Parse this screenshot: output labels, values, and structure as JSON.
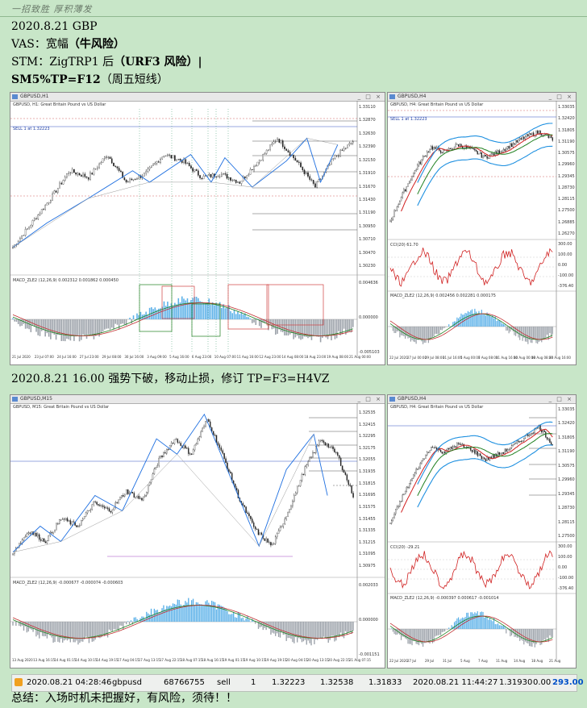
{
  "header": {
    "motto": "一招致胜 厚积薄发"
  },
  "lines": {
    "date_symbol": "2020.8.21 GBP",
    "vas_prefix": "VAS：宽幅",
    "vas_bold": "（牛风险）",
    "stm_prefix": "STM：ZigTRP1 后",
    "stm_bold": "（URF3 风险）",
    "stm_suffix": "|",
    "sm": "SM5%TP=F12",
    "sm_suffix": "（周五短线）",
    "note": "2020.8.21 16.00 强势下破，移动止损，修订 TP=F3=H4VZ"
  },
  "charts": {
    "h1": {
      "window_title": "GBPUSD,H1",
      "subtitle": "GBPUSD, H1: Great Britain Pound vs US Dollar",
      "sell_label": "SELL 1 at 1.32223",
      "macd_label": "MACD_ZLE2 (12,26,9) 0.002312 0.001862 0.000450",
      "price_axis": [
        "1.33110",
        "1.32870",
        "1.32630",
        "1.32390",
        "1.32150",
        "1.31910",
        "1.31670",
        "1.31430",
        "1.31190",
        "1.30950",
        "1.30710",
        "1.30470",
        "1.30230"
      ],
      "time_axis": [
        "21 Jul 2020",
        "23 Jul 07:00",
        "24 Jul 16:00",
        "27 Jul 23:00",
        "29 Jul 08:00",
        "30 Jul 16:00",
        "3 Aug 09:00",
        "5 Aug 16:00",
        "6 Aug 23:00",
        "10 Aug 07:00",
        "11 Aug 16:00",
        "12 Aug 23:00",
        "14 Aug 08:00",
        "18 Aug 23:00",
        "19 Aug 08:00",
        "21 Aug 00:00"
      ],
      "macd_axis": [
        "0.004636",
        "0.000000",
        "-0.005103"
      ]
    },
    "h4_top": {
      "window_title": "GBPUSD,H4",
      "subtitle": "GBPUSD, H4: Great Britain Pound vs US Dollar",
      "sell_label": "SELL 1 at 1.32223",
      "cci_label": "CCI(20) 61.70",
      "macd_label": "MACD_ZLE2 (12,26,9) 0.002456 0.002281 0.000175",
      "price_axis": [
        "1.33035",
        "1.32420",
        "1.31805",
        "1.31190",
        "1.30575",
        "1.29960",
        "1.29345",
        "1.28730",
        "1.28115",
        "1.27500",
        "1.26885",
        "1.26270"
      ],
      "cci_axis": [
        "300.00",
        "100.00",
        "0.00",
        "-100.00",
        "-376.40"
      ],
      "time_axis": [
        "22 Jul 2020",
        "27 Jul 00:00",
        "29 Jul 08:00",
        "31 Jul 16:00",
        "5 Aug 00:00",
        "7 Aug 08:00",
        "11 Aug 16:00",
        "14 Aug 00:00",
        "18 Aug 08:00",
        "20 Aug 16:00"
      ]
    },
    "m15": {
      "window_title": "GBPUSD,M15",
      "subtitle": "GBPUSD, M15: Great Britain Pound vs US Dollar",
      "macd_label": "MACD_ZLE2 (12,26,9) -0.000677 -0.000074 -0.000603",
      "price_axis": [
        "1.32535",
        "1.32415",
        "1.32295",
        "1.32175",
        "1.32055",
        "1.31935",
        "1.31815",
        "1.31695",
        "1.31575",
        "1.31455",
        "1.31335",
        "1.31215",
        "1.31095",
        "1.30975"
      ],
      "time_axis": [
        "13 Aug 2020",
        "13 Aug 16:15",
        "14 Aug 01:15",
        "14 Aug 10:15",
        "14 Aug 19:15",
        "17 Aug 04:15",
        "17 Aug 13:15",
        "17 Aug 22:15",
        "18 Aug 07:15",
        "18 Aug 16:15",
        "19 Aug 01:15",
        "19 Aug 10:15",
        "19 Aug 19:15",
        "20 Aug 04:15",
        "20 Aug 13:15",
        "20 Aug 22:15",
        "21 Aug 07:15"
      ],
      "macd_axis": [
        "0.002033",
        "0.000000",
        "-0.001151"
      ]
    },
    "h4_bottom": {
      "window_title": "GBPUSD,H4",
      "subtitle": "GBPUSD, H4: Great Britain Pound vs US Dollar",
      "cci_label": "CCI(20) -29.21",
      "macd_label": "MACD_ZLE2 (12,26,9) -0.000397 0.000617 -0.001014",
      "price_axis": [
        "1.33035",
        "1.32420",
        "1.31805",
        "1.31190",
        "1.30575",
        "1.29960",
        "1.29345",
        "1.28730",
        "1.28115",
        "1.27500"
      ],
      "cci_axis": [
        "300.00",
        "100.00",
        "0.00",
        "-100.00",
        "-376.40"
      ],
      "time_axis": [
        "22 Jul 2020",
        "27 Jul",
        "29 Jul",
        "31 Jul",
        "5 Aug",
        "7 Aug",
        "11 Aug",
        "14 Aug",
        "18 Aug",
        "21 Aug"
      ]
    }
  },
  "trade": {
    "open_time": "2020.08.21 04:28:46",
    "symbol": "gbpusd",
    "ticket": "68766755",
    "type": "sell",
    "volume": "1",
    "open_price": "1.32223",
    "sl": "1.32538",
    "tp": "1.31833",
    "close_time": "2020.08.21 11:44:27",
    "close_price": "1.31930",
    "commission": "0.00",
    "profit": "293.00"
  },
  "footer": {
    "summary": "总结：入场时机未把握好，有风险，须待！！"
  },
  "colors": {
    "page_bg": "#c8e6c8",
    "profit": "#0050c8",
    "candle_up": "#1a1a1a",
    "zigzag": "#1e6fe0",
    "ma_red": "#d02020",
    "ma_green": "#208020",
    "band_blue": "#1e90e0"
  }
}
